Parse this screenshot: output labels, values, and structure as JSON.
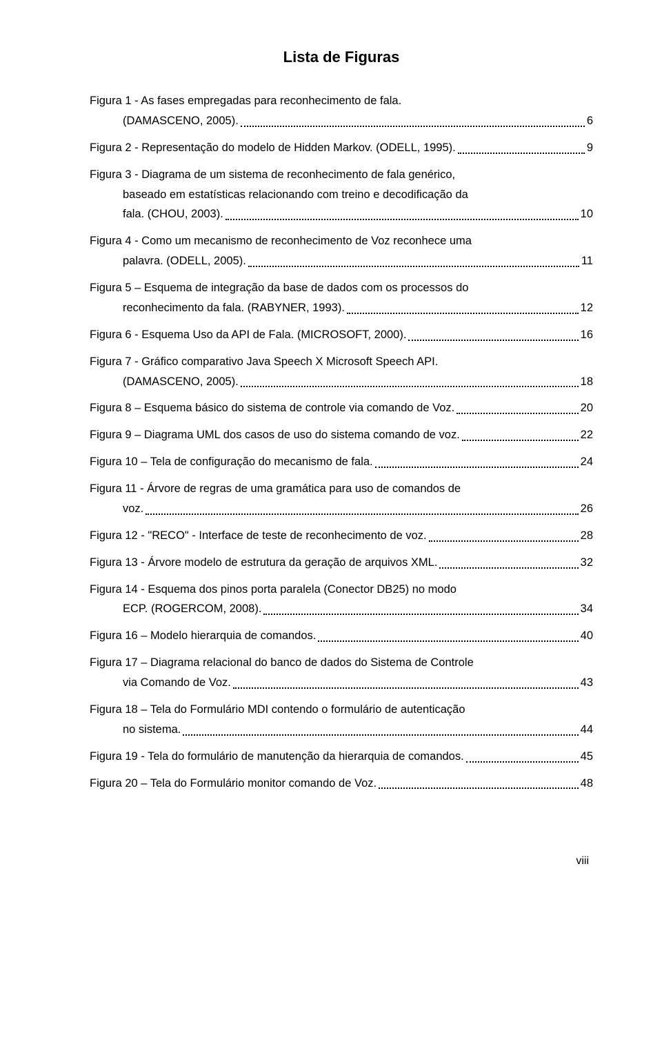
{
  "title": "Lista de Figuras",
  "footer": "viii",
  "entries": [
    {
      "lines": [
        "Figura 1 - As fases empregadas para reconhecimento de fala.",
        "(DAMASCENO, 2005)."
      ],
      "page": "6"
    },
    {
      "lines": [
        "Figura 2 - Representação do modelo de Hidden Markov. (ODELL, 1995)."
      ],
      "page": "9"
    },
    {
      "lines": [
        "Figura 3 - Diagrama de um sistema de reconhecimento de fala genérico,",
        "baseado em estatísticas relacionando com treino e decodificação da",
        "fala. (CHOU, 2003)."
      ],
      "page": "10"
    },
    {
      "lines": [
        "Figura 4 - Como um mecanismo de reconhecimento de Voz reconhece uma",
        "palavra. (ODELL, 2005)."
      ],
      "page": "11"
    },
    {
      "lines": [
        "Figura 5 – Esquema de integração da base de dados com os processos do",
        "reconhecimento da fala. (RABYNER, 1993)."
      ],
      "page": "12"
    },
    {
      "lines": [
        "Figura 6 - Esquema Uso da API de Fala. (MICROSOFT, 2000)."
      ],
      "page": "16"
    },
    {
      "lines": [
        "Figura 7 - Gráfico comparativo Java Speech X Microsoft Speech API.",
        "(DAMASCENO, 2005)."
      ],
      "page": "18"
    },
    {
      "lines": [
        "Figura 8 – Esquema básico do sistema de controle via comando de Voz."
      ],
      "page": "20"
    },
    {
      "lines": [
        "Figura 9 – Diagrama UML dos casos de uso do sistema comando de voz."
      ],
      "page": "22"
    },
    {
      "lines": [
        "Figura 10 – Tela de configuração do mecanismo de fala."
      ],
      "page": "24"
    },
    {
      "lines": [
        "Figura 11 - Árvore de regras de uma gramática para uso de comandos de",
        "voz."
      ],
      "page": "26"
    },
    {
      "lines": [
        "Figura 12 - \"RECO\" - Interface de teste de reconhecimento de voz."
      ],
      "page": "28"
    },
    {
      "lines": [
        "Figura 13 - Árvore modelo de estrutura da geração de arquivos XML."
      ],
      "page": "32"
    },
    {
      "lines": [
        "Figura 14 - Esquema dos pinos porta paralela (Conector DB25) no modo",
        "ECP. (ROGERCOM, 2008)."
      ],
      "page": "34"
    },
    {
      "lines": [
        "Figura 16 – Modelo hierarquia de comandos."
      ],
      "page": "40"
    },
    {
      "lines": [
        "Figura 17 – Diagrama relacional do banco de dados do Sistema de Controle",
        "via Comando de Voz."
      ],
      "page": "43"
    },
    {
      "lines": [
        "Figura 18 – Tela do Formulário MDI contendo o formulário de autenticação",
        "no sistema."
      ],
      "page": "44"
    },
    {
      "lines": [
        "Figura 19 - Tela do formulário de manutenção da hierarquia de comandos."
      ],
      "page": "45"
    },
    {
      "lines": [
        "Figura 20 – Tela do Formulário monitor comando de Voz."
      ],
      "page": "48"
    }
  ]
}
